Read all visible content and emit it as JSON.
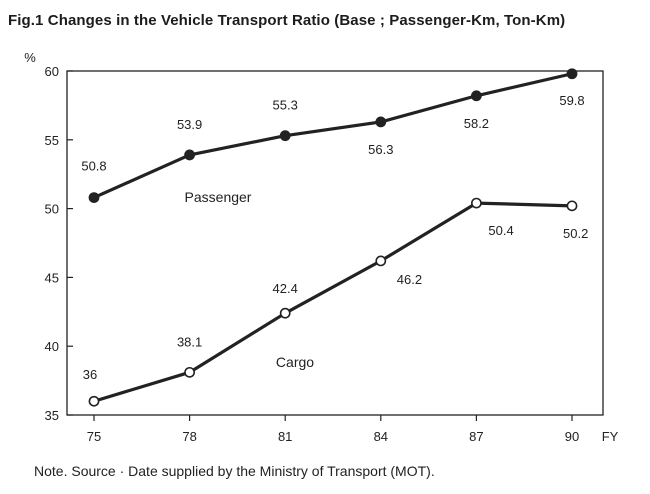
{
  "figure": {
    "title": "Fig.1   Changes in the Vehicle Transport Ratio (Base ; Passenger-Km, Ton-Km)",
    "note": "Note. Source · Date supplied by the Ministry of Transport (MOT)."
  },
  "chart_data": {
    "type": "line",
    "title": "Changes in the Vehicle Transport Ratio (Base ; Passenger-Km, Ton-Km)",
    "x": [
      "75",
      "78",
      "81",
      "84",
      "87",
      "90"
    ],
    "xlabel": "FY",
    "ylabel": "%",
    "ylim": [
      35,
      60
    ],
    "yticks": [
      35,
      40,
      45,
      50,
      55,
      60
    ],
    "grid": false,
    "legend": "inline labels",
    "series": [
      {
        "name": "Passenger",
        "values": [
          50.8,
          53.9,
          55.3,
          56.3,
          58.2,
          59.8
        ],
        "labels": [
          "50.8",
          "53.9",
          "55.3",
          "56.3",
          "58.2",
          "59.8"
        ],
        "marker": "filled-circle",
        "color": "#222222"
      },
      {
        "name": "Cargo",
        "values": [
          36.0,
          38.1,
          42.4,
          46.2,
          50.4,
          50.2
        ],
        "labels": [
          "36",
          "38.1",
          "42.4",
          "46.2",
          "50.4",
          "50.2"
        ],
        "marker": "open-circle",
        "color": "#222222"
      }
    ]
  }
}
